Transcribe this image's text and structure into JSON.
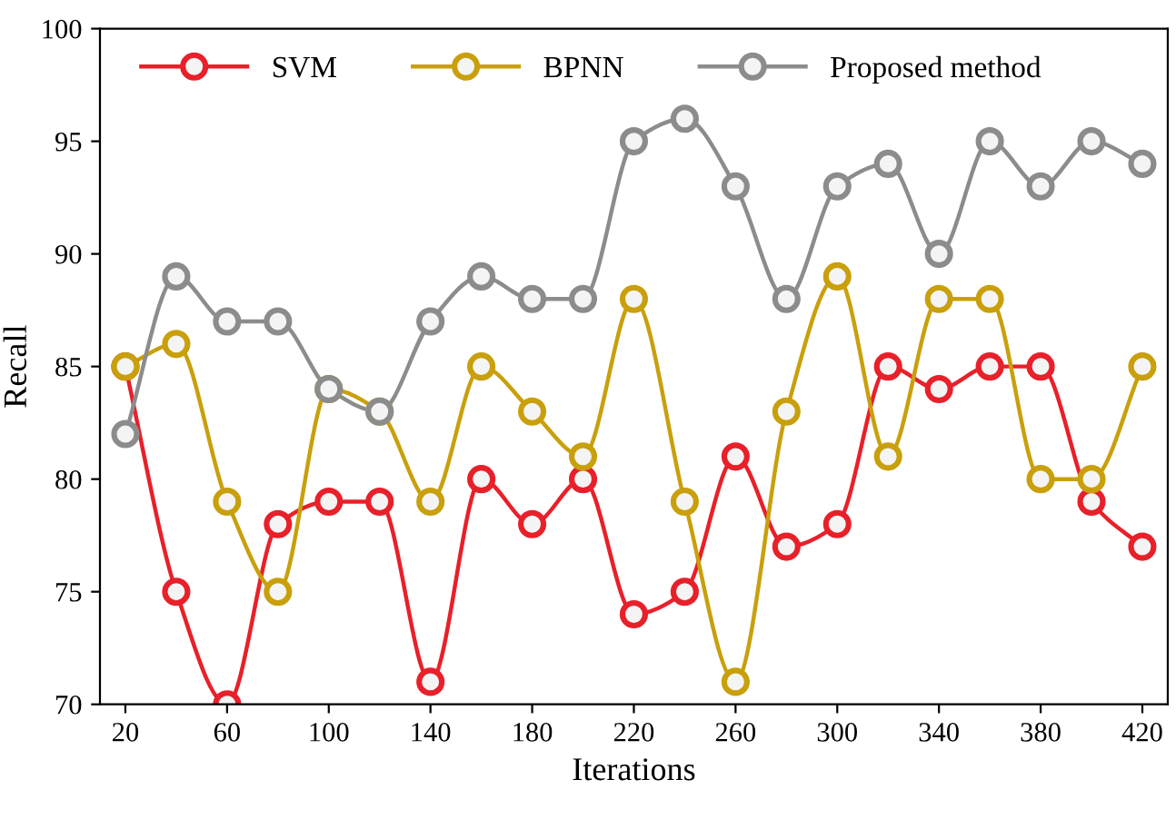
{
  "chart_data": {
    "type": "line",
    "xlabel": "Iterations",
    "ylabel": "Recall",
    "x": [
      20,
      40,
      60,
      80,
      100,
      120,
      140,
      160,
      180,
      200,
      220,
      240,
      260,
      280,
      300,
      320,
      340,
      360,
      380,
      400,
      420
    ],
    "series": [
      {
        "name": "SVM",
        "color": "#e8202a",
        "values": [
          85,
          75,
          70,
          78,
          79,
          79,
          71,
          80,
          78,
          80,
          74,
          75,
          81,
          77,
          78,
          85,
          84,
          85,
          85,
          79,
          77
        ]
      },
      {
        "name": "BPNN",
        "color": "#c9a00c",
        "values": [
          85,
          86,
          79,
          75,
          84,
          83,
          79,
          85,
          83,
          81,
          88,
          79,
          71,
          83,
          89,
          81,
          88,
          88,
          80,
          80,
          85
        ]
      },
      {
        "name": "Proposed method",
        "color": "#8c8c8c",
        "values": [
          82,
          89,
          87,
          87,
          84,
          83,
          87,
          89,
          88,
          88,
          95,
          96,
          93,
          88,
          93,
          94,
          90,
          95,
          93,
          95,
          94
        ]
      }
    ],
    "xlim": [
      10,
      430
    ],
    "xticks": [
      20,
      60,
      100,
      140,
      180,
      220,
      260,
      300,
      340,
      380,
      420
    ],
    "ylim": [
      70,
      100
    ],
    "yticks": [
      70,
      75,
      80,
      85,
      90,
      95,
      100
    ],
    "grid": false,
    "legend": "top",
    "marker": "circle",
    "line_style": "solid"
  }
}
